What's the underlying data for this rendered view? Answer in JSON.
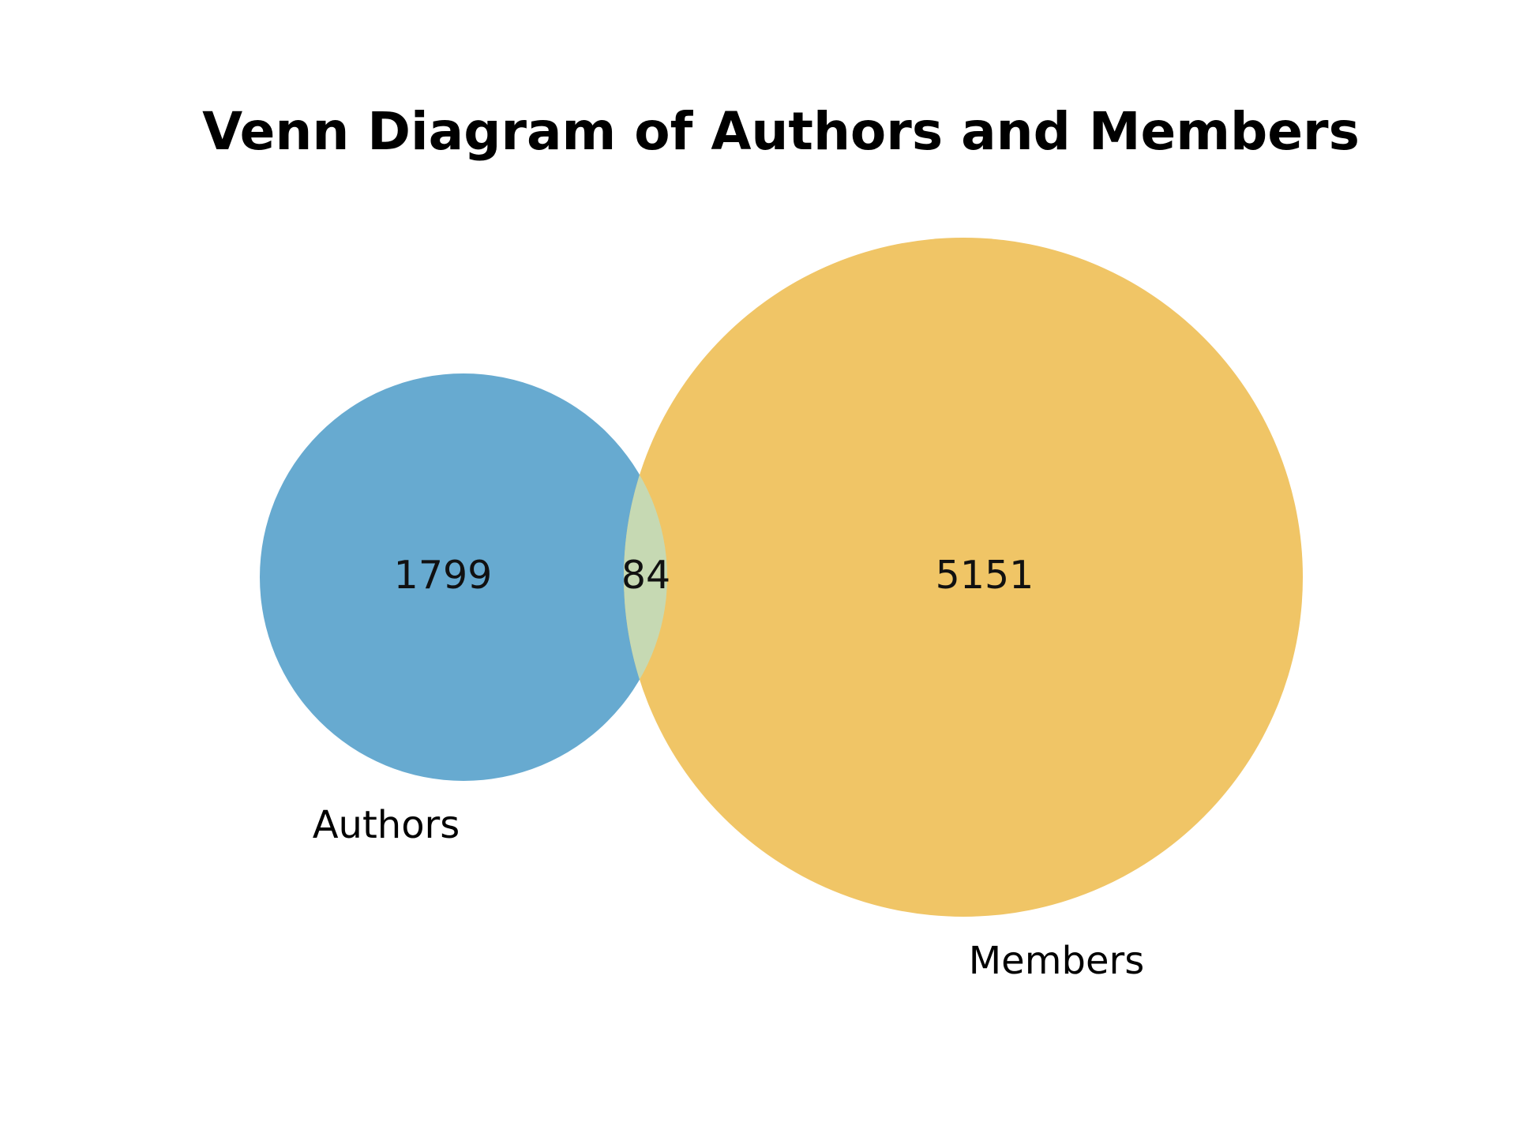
{
  "title": "Venn Diagram of Authors and Members",
  "sets": [
    {
      "name": "Authors",
      "only_count": "1799",
      "color": "#67aad0"
    },
    {
      "name": "Members",
      "only_count": "5151",
      "color": "#f0c566"
    }
  ],
  "intersection": {
    "count": "84",
    "color": "#c6d9b3"
  }
}
